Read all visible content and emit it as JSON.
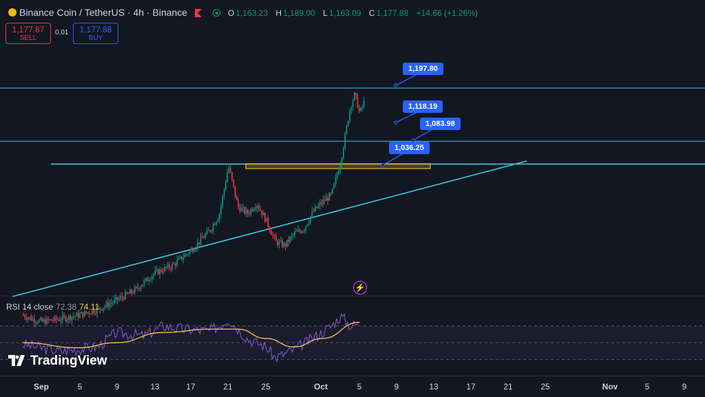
{
  "header": {
    "title": "Binance Coin / TetherUS · 4h · Binance",
    "ohlc": [
      {
        "key": "O",
        "value": "1,163.23"
      },
      {
        "key": "H",
        "value": "1,189.00"
      },
      {
        "key": "L",
        "value": "1,163.09"
      },
      {
        "key": "C",
        "value": "1,177.88"
      }
    ],
    "change": "+14.66 (+1.26%)"
  },
  "trade": {
    "sell_price": "1,177.87",
    "sell_label": "SELL",
    "spread": "0.01",
    "buy_price": "1,177.88",
    "buy_label": "BUY"
  },
  "rsi": {
    "label": "RSI 14 close",
    "value": "72.38",
    "ma_value": "74.11"
  },
  "branding": {
    "logo_text": "TradingView"
  },
  "colors": {
    "up": "#089981",
    "down": "#f23645",
    "hline": "#38c9e0",
    "rsi_line": "#7e57c2",
    "rsi_ma": "#f5c84c",
    "zone": "#f0b90b",
    "callout": "#2962ff"
  },
  "chart_data": {
    "type": "candlestick",
    "title": "Binance Coin / TetherUS · 4h · Binance",
    "x_ticks": [
      "Sep",
      "5",
      "9",
      "13",
      "17",
      "21",
      "25",
      "Oct",
      "5",
      "9",
      "13",
      "17",
      "21",
      "25",
      "Nov",
      "5",
      "9"
    ],
    "bold_ticks": [
      "Sep",
      "Oct",
      "Nov"
    ],
    "price_path": [
      {
        "date": "2025-08-30",
        "price": 858
      },
      {
        "date": "2025-08-31",
        "price": 852
      },
      {
        "date": "2025-09-01",
        "price": 848
      },
      {
        "date": "2025-09-03",
        "price": 852
      },
      {
        "date": "2025-09-05",
        "price": 858
      },
      {
        "date": "2025-09-07",
        "price": 866
      },
      {
        "date": "2025-09-09",
        "price": 880
      },
      {
        "date": "2025-09-11",
        "price": 895
      },
      {
        "date": "2025-09-13",
        "price": 920
      },
      {
        "date": "2025-09-15",
        "price": 932
      },
      {
        "date": "2025-09-17",
        "price": 955
      },
      {
        "date": "2025-09-19",
        "price": 985
      },
      {
        "date": "2025-09-20",
        "price": 1008
      },
      {
        "date": "2025-09-21",
        "price": 1081
      },
      {
        "date": "2025-09-22",
        "price": 1020
      },
      {
        "date": "2025-09-23",
        "price": 1010
      },
      {
        "date": "2025-09-24",
        "price": 1025
      },
      {
        "date": "2025-09-25",
        "price": 1000
      },
      {
        "date": "2025-09-26",
        "price": 968
      },
      {
        "date": "2025-09-27",
        "price": 962
      },
      {
        "date": "2025-09-28",
        "price": 980
      },
      {
        "date": "2025-09-29",
        "price": 986
      },
      {
        "date": "2025-09-30",
        "price": 1012
      },
      {
        "date": "2025-10-01",
        "price": 1027
      },
      {
        "date": "2025-10-02",
        "price": 1038
      },
      {
        "date": "2025-10-03",
        "price": 1090
      },
      {
        "date": "2025-10-04",
        "price": 1170
      },
      {
        "date": "2025-10-04T12:00",
        "price": 1189
      },
      {
        "date": "2025-10-05",
        "price": 1160
      },
      {
        "date": "2025-10-05T12:00",
        "price": 1178
      }
    ],
    "horizontal_levels": [
      1197.8,
      1118.19,
      1083.98
    ],
    "level_labels": [
      "1,197.80",
      "1,118.19",
      "1,083.98",
      "1,036.25"
    ],
    "zone": {
      "from_date": "2025-09-21",
      "to_date": "2025-10-09",
      "low": 1032,
      "high": 1040,
      "label": "1,036.25"
    },
    "trendline": [
      {
        "date": "2025-08-30",
        "price": 830
      },
      {
        "date": "2025-10-23",
        "price": 1040
      }
    ],
    "rsi_path": [
      {
        "date": "2025-08-30",
        "value": 48
      },
      {
        "date": "2025-09-03",
        "value": 40
      },
      {
        "date": "2025-09-07",
        "value": 45
      },
      {
        "date": "2025-09-09",
        "value": 62
      },
      {
        "date": "2025-09-12",
        "value": 58
      },
      {
        "date": "2025-09-14",
        "value": 70
      },
      {
        "date": "2025-09-16",
        "value": 66
      },
      {
        "date": "2025-09-19",
        "value": 64
      },
      {
        "date": "2025-09-20",
        "value": 70
      },
      {
        "date": "2025-09-21",
        "value": 78
      },
      {
        "date": "2025-09-23",
        "value": 55
      },
      {
        "date": "2025-09-25",
        "value": 45
      },
      {
        "date": "2025-09-26",
        "value": 32
      },
      {
        "date": "2025-09-28",
        "value": 42
      },
      {
        "date": "2025-09-30",
        "value": 55
      },
      {
        "date": "2025-10-02",
        "value": 70
      },
      {
        "date": "2025-10-03",
        "value": 82
      },
      {
        "date": "2025-10-04",
        "value": 70
      },
      {
        "date": "2025-10-05",
        "value": 72.38
      }
    ],
    "rsi_ma_path": [
      {
        "date": "2025-08-30",
        "value": 50
      },
      {
        "date": "2025-09-05",
        "value": 44
      },
      {
        "date": "2025-09-09",
        "value": 50
      },
      {
        "date": "2025-09-14",
        "value": 62
      },
      {
        "date": "2025-09-19",
        "value": 66
      },
      {
        "date": "2025-09-22",
        "value": 66
      },
      {
        "date": "2025-09-25",
        "value": 55
      },
      {
        "date": "2025-09-28",
        "value": 45
      },
      {
        "date": "2025-10-01",
        "value": 55
      },
      {
        "date": "2025-10-05",
        "value": 74.11
      }
    ],
    "rsi_levels": [
      70,
      50,
      30
    ],
    "ylim": [
      800,
      1230
    ]
  }
}
